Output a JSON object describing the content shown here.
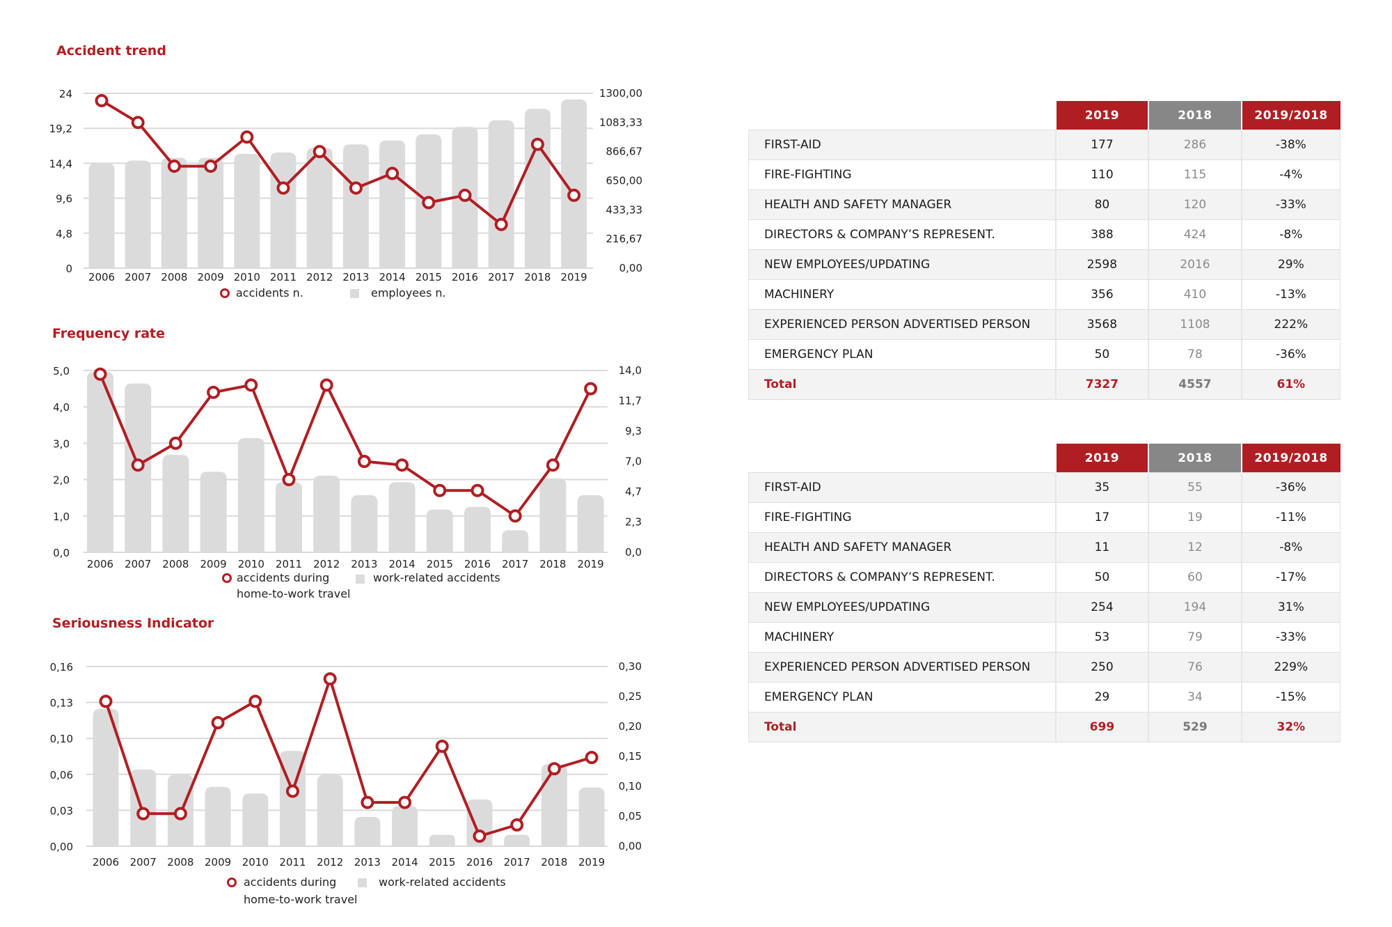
{
  "colors": {
    "accent": "#b01e23",
    "bar": "#dcdbdc",
    "grid": "#d9d9d9",
    "header_gray": "#878787"
  },
  "chart_data": [
    {
      "type": "bar+line",
      "title": "Accident trend",
      "categories": [
        "2006",
        "2007",
        "2008",
        "2009",
        "2010",
        "2011",
        "2012",
        "2013",
        "2014",
        "2015",
        "2016",
        "2017",
        "2018",
        "2019"
      ],
      "left_axis": {
        "range": [
          0,
          24
        ],
        "ticks": [
          "24",
          "19,2",
          "14,4",
          "9,6",
          "4,8",
          "0"
        ]
      },
      "right_axis": {
        "range": [
          0,
          1300
        ],
        "ticks": [
          "1300,00",
          "1083,33",
          "866,67",
          "650,00",
          "433,33",
          "216,67",
          "0,00"
        ]
      },
      "grid": true,
      "legend_position": "bottom",
      "series": [
        {
          "name": "accidents n.",
          "kind": "line",
          "axis": "left",
          "values": [
            23,
            20,
            14,
            14,
            18,
            11,
            16,
            11,
            13,
            9,
            10,
            6,
            17,
            10
          ]
        },
        {
          "name": "employees n.",
          "kind": "bar",
          "axis": "right",
          "values": [
            780,
            800,
            820,
            820,
            850,
            860,
            895,
            920,
            950,
            995,
            1050,
            1100,
            1185,
            1255
          ]
        }
      ]
    },
    {
      "type": "bar+line",
      "title": "Frequency rate",
      "categories": [
        "2006",
        "2007",
        "2008",
        "2009",
        "2010",
        "2011",
        "2012",
        "2013",
        "2014",
        "2015",
        "2016",
        "2017",
        "2018",
        "2019"
      ],
      "left_axis": {
        "range": [
          0,
          5
        ],
        "ticks": [
          "5,0",
          "4,0",
          "3,0",
          "2,0",
          "1,0",
          "0,0"
        ]
      },
      "right_axis": {
        "range": [
          0,
          14
        ],
        "ticks": [
          "14,0",
          "11,7",
          "9,3",
          "7,0",
          "4,7",
          "2,3",
          "0,0"
        ]
      },
      "grid": true,
      "legend_position": "bottom",
      "series": [
        {
          "name": "accidents during home-to-work travel",
          "legend_lines": [
            "accidents during",
            "home-to-work travel"
          ],
          "kind": "line",
          "axis": "left",
          "values": [
            4.9,
            2.4,
            3.0,
            4.4,
            4.6,
            2.0,
            4.6,
            2.5,
            2.4,
            1.7,
            1.7,
            1.0,
            2.4,
            4.5
          ]
        },
        {
          "name": "work-related accidents",
          "kind": "bar",
          "axis": "right",
          "values": [
            13.9,
            13.0,
            7.5,
            6.2,
            8.8,
            5.4,
            5.9,
            4.4,
            5.4,
            3.3,
            3.5,
            1.7,
            5.7,
            4.4
          ]
        }
      ]
    },
    {
      "type": "bar+line",
      "title": "Seriousness Indicator",
      "categories": [
        "2006",
        "2007",
        "2008",
        "2009",
        "2010",
        "2011",
        "2012",
        "2013",
        "2014",
        "2015",
        "2016",
        "2017",
        "2018",
        "2019"
      ],
      "left_axis": {
        "range": [
          0,
          0.16
        ],
        "ticks": [
          "0,16",
          "0,13",
          "0,10",
          "0,06",
          "0,03",
          "0,00"
        ]
      },
      "right_axis": {
        "range": [
          0,
          0.3
        ],
        "ticks": [
          "0,30",
          "0,25",
          "0,20",
          "0,15",
          "0,10",
          "0,05",
          "0,00"
        ]
      },
      "grid": true,
      "legend_position": "bottom",
      "series": [
        {
          "name": "accidents during home-to-work travel",
          "legend_lines": [
            "accidents during",
            "home-to-work travel"
          ],
          "kind": "line",
          "axis": "left",
          "values": [
            0.129,
            0.029,
            0.029,
            0.11,
            0.129,
            0.049,
            0.149,
            0.039,
            0.039,
            0.089,
            0.009,
            0.019,
            0.069,
            0.079
          ]
        },
        {
          "name": "work-related accidents",
          "kind": "bar",
          "axis": "right",
          "values": [
            0.229,
            0.128,
            0.119,
            0.099,
            0.088,
            0.159,
            0.119,
            0.049,
            0.067,
            0.019,
            0.078,
            0.019,
            0.137,
            0.098
          ]
        }
      ]
    }
  ],
  "tables": [
    {
      "headers": [
        "2019",
        "2018",
        "2019/2018"
      ],
      "rows": [
        {
          "label": "FIRST-AID",
          "v2019": "177",
          "v2018": "286",
          "var": "-38%"
        },
        {
          "label": "FIRE-FIGHTING",
          "v2019": "110",
          "v2018": "115",
          "var": "-4%"
        },
        {
          "label": "HEALTH AND SAFETY MANAGER",
          "v2019": "80",
          "v2018": "120",
          "var": "-33%"
        },
        {
          "label": "DIRECTORS & COMPANY’S REPRESENT.",
          "v2019": "388",
          "v2018": "424",
          "var": "-8%"
        },
        {
          "label": "NEW EMPLOYEES/UPDATING",
          "v2019": "2598",
          "v2018": "2016",
          "var": "29%"
        },
        {
          "label": "MACHINERY",
          "v2019": "356",
          "v2018": "410",
          "var": "-13%"
        },
        {
          "label": "EXPERIENCED PERSON ADVERTISED PERSON",
          "v2019": "3568",
          "v2018": "1108",
          "var": "222%"
        },
        {
          "label": "EMERGENCY PLAN",
          "v2019": "50",
          "v2018": "78",
          "var": "-36%"
        }
      ],
      "total": {
        "label": "Total",
        "v2019": "7327",
        "v2018": "4557",
        "var": "61%"
      }
    },
    {
      "headers": [
        "2019",
        "2018",
        "2019/2018"
      ],
      "rows": [
        {
          "label": "FIRST-AID",
          "v2019": "35",
          "v2018": "55",
          "var": "-36%"
        },
        {
          "label": "FIRE-FIGHTING",
          "v2019": "17",
          "v2018": "19",
          "var": "-11%"
        },
        {
          "label": "HEALTH AND SAFETY MANAGER",
          "v2019": "11",
          "v2018": "12",
          "var": "-8%"
        },
        {
          "label": "DIRECTORS & COMPANY’S REPRESENT.",
          "v2019": "50",
          "v2018": "60",
          "var": "-17%"
        },
        {
          "label": "NEW EMPLOYEES/UPDATING",
          "v2019": "254",
          "v2018": "194",
          "var": "31%"
        },
        {
          "label": "MACHINERY",
          "v2019": "53",
          "v2018": "79",
          "var": "-33%"
        },
        {
          "label": "EXPERIENCED PERSON ADVERTISED PERSON",
          "v2019": "250",
          "v2018": "76",
          "var": "229%"
        },
        {
          "label": "EMERGENCY PLAN",
          "v2019": "29",
          "v2018": "34",
          "var": "-15%"
        }
      ],
      "total": {
        "label": "Total",
        "v2019": "699",
        "v2018": "529",
        "var": "32%"
      }
    }
  ]
}
